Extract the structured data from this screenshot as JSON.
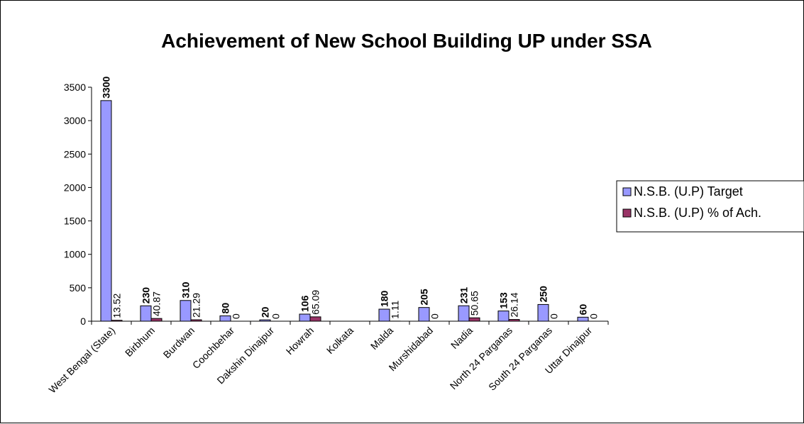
{
  "chart_data": {
    "type": "bar",
    "title": "Achievement of New School Building UP under SSA",
    "xlabel": "",
    "ylabel": "",
    "ylim": [
      0,
      3500
    ],
    "yticks": [
      0,
      500,
      1000,
      1500,
      2000,
      2500,
      3000,
      3500
    ],
    "grid": false,
    "legend_position": "right",
    "categories": [
      "West Bengal (State)",
      "Birbhum",
      "Burdwan",
      "Coochbehar",
      "Dakshin Dinajpur",
      "Howrah",
      "Kolkata",
      "Malda",
      "Murshidabad",
      "Nadia",
      "North 24 Parganas",
      "South 24 Parganas",
      "Uttar Dinajpur"
    ],
    "series": [
      {
        "name": "N.S.B. (U.P) Target",
        "color": "#9999ff",
        "values": [
          3300,
          230,
          310,
          80,
          20,
          106,
          null,
          180,
          205,
          231,
          153,
          250,
          60
        ],
        "labels": [
          "3300",
          "230",
          "310",
          "80",
          "20",
          "106",
          "",
          "180",
          "205",
          "231",
          "153",
          "250",
          "60"
        ]
      },
      {
        "name": "N.S.B. (U.P) % of Ach.",
        "color": "#993366",
        "values": [
          13.52,
          40.87,
          21.29,
          0,
          0,
          65.09,
          null,
          1.11,
          0,
          50.65,
          26.14,
          0,
          0
        ],
        "labels": [
          "13.52",
          "40.87",
          "21.29",
          "0",
          "0",
          "65.09",
          "",
          "1.11",
          "0",
          "50.65",
          "26.14",
          "0",
          "0"
        ]
      }
    ]
  }
}
